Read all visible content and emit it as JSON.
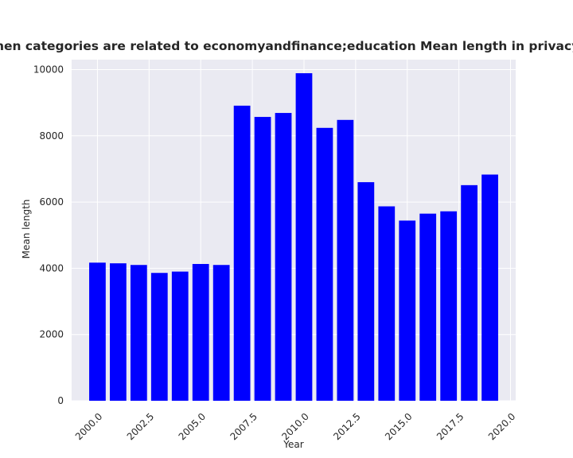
{
  "chart_data": {
    "type": "bar",
    "title": "Mean length when categories are related to economyandfinance;education Mean length in privacy policies by year",
    "xlabel": "Year",
    "ylabel": "Mean length",
    "x": [
      2000,
      2001,
      2002,
      2003,
      2004,
      2005,
      2006,
      2007,
      2008,
      2009,
      2010,
      2011,
      2012,
      2013,
      2014,
      2015,
      2016,
      2017,
      2018,
      2019
    ],
    "values": [
      4170,
      4150,
      4100,
      3860,
      3900,
      4130,
      4100,
      8910,
      8570,
      8690,
      9890,
      8240,
      8480,
      6600,
      5870,
      5440,
      5650,
      5720,
      6510,
      6830
    ],
    "xlim": [
      1998.75,
      2020.25
    ],
    "ylim": [
      0,
      10300
    ],
    "x_ticks": [
      "2000.0",
      "2002.5",
      "2005.0",
      "2007.5",
      "2010.0",
      "2012.5",
      "2015.0",
      "2017.5",
      "2020.0"
    ],
    "y_ticks": [
      "0",
      "2000",
      "4000",
      "6000",
      "8000",
      "10000"
    ],
    "grid": true,
    "colors": {
      "bar": "#0000ff",
      "plot_background": "#eaeaf2",
      "grid": "#ffffff"
    }
  }
}
